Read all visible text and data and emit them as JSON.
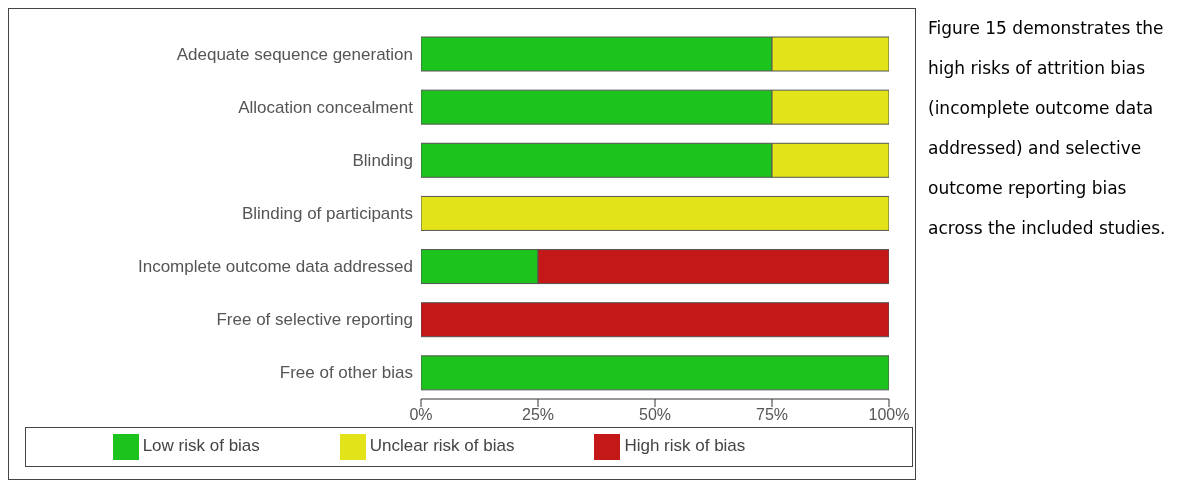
{
  "chart_data": {
    "type": "bar",
    "orientation": "horizontal",
    "stacked": true,
    "categories": [
      "Adequate sequence generation",
      "Allocation concealment",
      "Blinding",
      "Blinding of participants",
      "Incomplete outcome data addressed",
      "Free of selective reporting",
      "Free of other bias"
    ],
    "series": [
      {
        "name": "Low risk of bias",
        "color": "#1cc31c",
        "values": [
          75,
          75,
          75,
          0,
          25,
          0,
          100
        ]
      },
      {
        "name": "Unclear risk of bias",
        "color": "#e3e31a",
        "values": [
          25,
          25,
          25,
          100,
          0,
          0,
          0
        ]
      },
      {
        "name": "High risk of bias",
        "color": "#c41818",
        "values": [
          0,
          0,
          0,
          0,
          75,
          100,
          0
        ]
      }
    ],
    "xlim": [
      0,
      100
    ],
    "xticks": [
      {
        "value": 0,
        "label": "0%"
      },
      {
        "value": 25,
        "label": "25%"
      },
      {
        "value": 50,
        "label": "50%"
      },
      {
        "value": 75,
        "label": "75%"
      },
      {
        "value": 100,
        "label": "100%"
      }
    ],
    "grid": false,
    "legend": "bottom",
    "annotations": [
      "Figure 15 demonstrates the high risks of attrition bias (incomplete outcome data addressed) and selective outcome reporting bias across the included studies."
    ]
  }
}
